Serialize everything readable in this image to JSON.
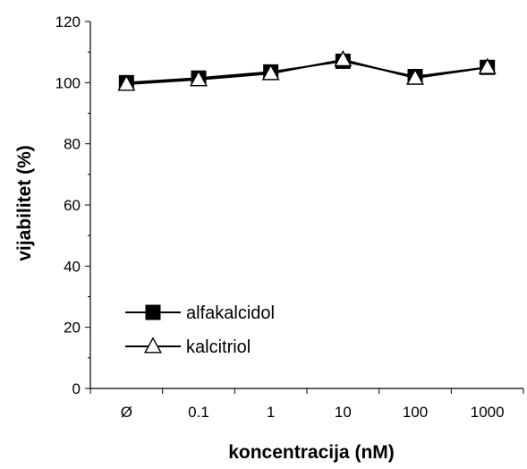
{
  "chart_data": {
    "type": "line",
    "title": "",
    "xlabel": "koncentracija (nM)",
    "ylabel": "vijabilitet (%)",
    "categories": [
      "Ø",
      "0.1",
      "1",
      "10",
      "100",
      "1000"
    ],
    "ylim": [
      0,
      120
    ],
    "yticks": [
      0,
      20,
      40,
      60,
      80,
      100,
      120
    ],
    "grid": false,
    "legend_position": "bottom-left",
    "series": [
      {
        "name": "alfakalcidol",
        "marker": "filled-square",
        "values": [
          100,
          101.5,
          103.5,
          107,
          102,
          105
        ]
      },
      {
        "name": "kalcitriol",
        "marker": "open-triangle",
        "values": [
          99.5,
          101,
          103,
          107.5,
          101.5,
          105
        ]
      }
    ]
  }
}
